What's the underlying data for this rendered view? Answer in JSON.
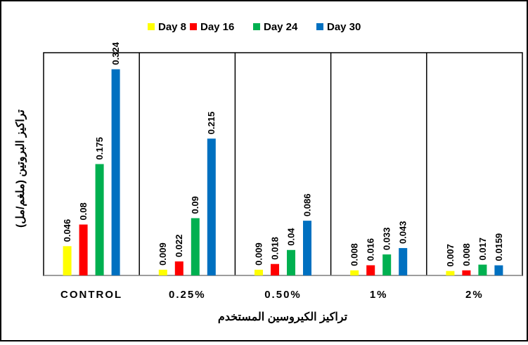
{
  "chart_data": {
    "type": "bar",
    "xlabel": "تراكيز الكيروسين المستخدم",
    "ylabel": "تراكيز البروتين (ملغم/مل)",
    "categories": [
      "CONTROL",
      "0.25%",
      "0.50%",
      "1%",
      "2%"
    ],
    "series": [
      {
        "name": "Day 8",
        "color": "#ffff00",
        "values": [
          0.046,
          0.009,
          0.009,
          0.008,
          0.007
        ]
      },
      {
        "name": "Day 16",
        "color": "#ff0000",
        "values": [
          0.08,
          0.022,
          0.018,
          0.016,
          0.008
        ]
      },
      {
        "name": "Day 24",
        "color": "#00b050",
        "values": [
          0.175,
          0.09,
          0.04,
          0.033,
          0.017
        ]
      },
      {
        "name": "Day 30",
        "color": "#0070c0",
        "values": [
          0.324,
          0.215,
          0.086,
          0.043,
          0.0159
        ]
      }
    ],
    "ylim": [
      0,
      0.35
    ],
    "legend": "top"
  }
}
